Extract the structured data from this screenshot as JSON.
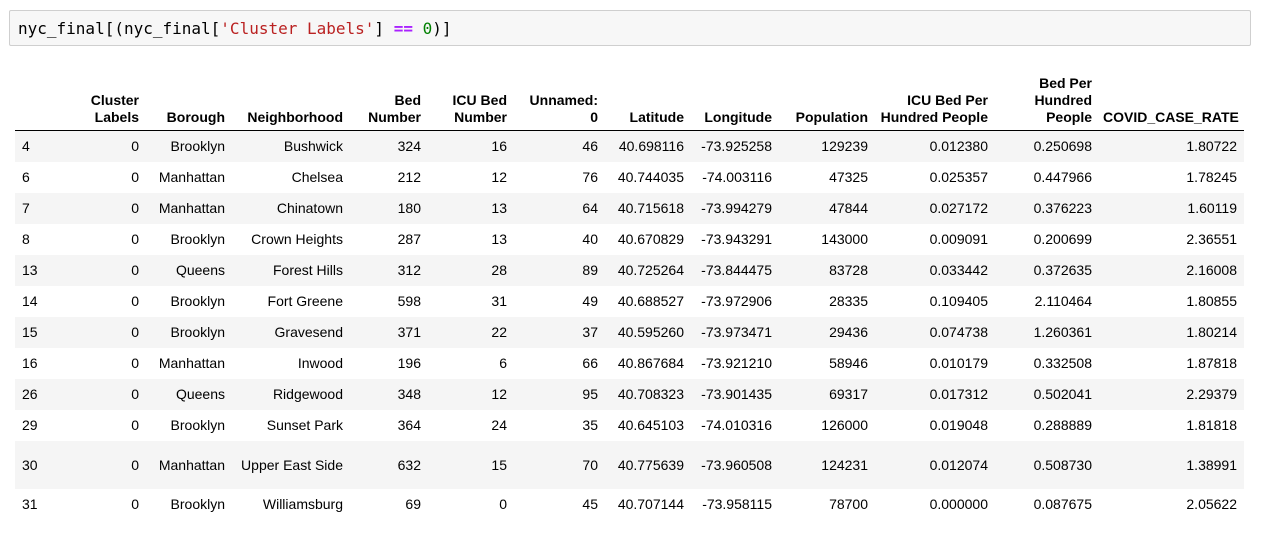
{
  "input_cell": {
    "code_parts": {
      "t1": "nyc_final[(nyc_final[",
      "t2": "'Cluster Labels'",
      "t3": "] ",
      "t4": "==",
      "t5": " ",
      "t6": "0",
      "t7": ")]"
    },
    "colors": {
      "string": "#ba2121",
      "operator": "#aa22ff",
      "number": "#008000"
    }
  },
  "table": {
    "columns": [
      "",
      "Cluster Labels",
      "Borough",
      "Neighborhood",
      "Bed Number",
      "ICU Bed Number",
      "Unnamed: 0",
      "Latitude",
      "Longitude",
      "Population",
      "ICU Bed Per Hundred People",
      "Bed Per Hundred People",
      "COVID_CASE_RATE"
    ],
    "rows": [
      [
        "4",
        "0",
        "Brooklyn",
        "Bushwick",
        "324",
        "16",
        "46",
        "40.698116",
        "-73.925258",
        "129239",
        "0.012380",
        "0.250698",
        "1.80722"
      ],
      [
        "6",
        "0",
        "Manhattan",
        "Chelsea",
        "212",
        "12",
        "76",
        "40.744035",
        "-74.003116",
        "47325",
        "0.025357",
        "0.447966",
        "1.78245"
      ],
      [
        "7",
        "0",
        "Manhattan",
        "Chinatown",
        "180",
        "13",
        "64",
        "40.715618",
        "-73.994279",
        "47844",
        "0.027172",
        "0.376223",
        "1.60119"
      ],
      [
        "8",
        "0",
        "Brooklyn",
        "Crown Heights",
        "287",
        "13",
        "40",
        "40.670829",
        "-73.943291",
        "143000",
        "0.009091",
        "0.200699",
        "2.36551"
      ],
      [
        "13",
        "0",
        "Queens",
        "Forest Hills",
        "312",
        "28",
        "89",
        "40.725264",
        "-73.844475",
        "83728",
        "0.033442",
        "0.372635",
        "2.16008"
      ],
      [
        "14",
        "0",
        "Brooklyn",
        "Fort Greene",
        "598",
        "31",
        "49",
        "40.688527",
        "-73.972906",
        "28335",
        "0.109405",
        "2.110464",
        "1.80855"
      ],
      [
        "15",
        "0",
        "Brooklyn",
        "Gravesend",
        "371",
        "22",
        "37",
        "40.595260",
        "-73.973471",
        "29436",
        "0.074738",
        "1.260361",
        "1.80214"
      ],
      [
        "16",
        "0",
        "Manhattan",
        "Inwood",
        "196",
        "6",
        "66",
        "40.867684",
        "-73.921210",
        "58946",
        "0.010179",
        "0.332508",
        "1.87818"
      ],
      [
        "26",
        "0",
        "Queens",
        "Ridgewood",
        "348",
        "12",
        "95",
        "40.708323",
        "-73.901435",
        "69317",
        "0.017312",
        "0.502041",
        "2.29379"
      ],
      [
        "29",
        "0",
        "Brooklyn",
        "Sunset Park",
        "364",
        "24",
        "35",
        "40.645103",
        "-74.010316",
        "126000",
        "0.019048",
        "0.288889",
        "1.81818"
      ],
      [
        "30",
        "0",
        "Manhattan",
        "Upper East Side",
        "632",
        "15",
        "70",
        "40.775639",
        "-73.960508",
        "124231",
        "0.012074",
        "0.508730",
        "1.38991"
      ],
      [
        "31",
        "0",
        "Brooklyn",
        "Williamsburg",
        "69",
        "0",
        "45",
        "40.707144",
        "-73.958115",
        "78700",
        "0.000000",
        "0.087675",
        "2.05622"
      ]
    ]
  }
}
